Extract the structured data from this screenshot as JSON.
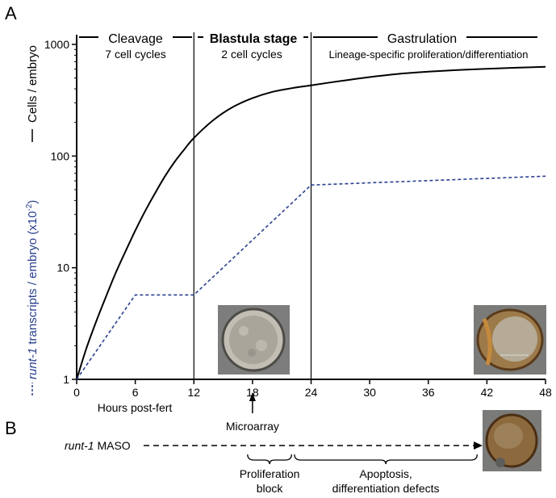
{
  "panel_a_label": "A",
  "panel_b_label": "B",
  "colors": {
    "cells_line": "#000000",
    "runt_line": "#2a3f8f",
    "axis": "#000000",
    "photo_bg": "#7d7d7d",
    "photo_embryo_a": "#b7b3a8",
    "photo_embryo_b": "#9a7a4a",
    "photo_embryo_c": "#8a6a3f"
  },
  "chart_data": {
    "type": "line",
    "log_y": true,
    "xlim": [
      0,
      48
    ],
    "ylim": [
      1,
      1000
    ],
    "x_ticks": [
      "0",
      "6",
      "12",
      "18",
      "24",
      "30",
      "36",
      "42",
      "48"
    ],
    "y_ticks": [
      "1",
      "10",
      "100",
      "1000"
    ],
    "xlabel": "Hours post-fert",
    "ylabel_cells": "Cells / embryo",
    "ylabel_runt_italic": "runt-1",
    "ylabel_runt_rest": " transcripts / embryo (x10",
    "ylabel_runt_exp": "-2",
    "ylabel_runt_close": ")",
    "grid": false,
    "stage_dividers_x": [
      12,
      24
    ],
    "stages": [
      {
        "name": "Cleavage",
        "detail": "7 cell cycles",
        "bold": false
      },
      {
        "name": "Blastula stage",
        "detail": "2 cell cycles",
        "bold": true
      },
      {
        "name": "Gastrulation",
        "detail": "Lineage-specific proliferation/differentiation",
        "bold": false
      }
    ],
    "series": [
      {
        "style": "solid",
        "x": [
          0,
          1,
          2,
          3,
          4,
          5,
          6,
          7,
          8,
          9,
          10,
          11,
          12,
          14,
          16,
          18,
          20,
          22,
          24,
          27,
          30,
          33,
          36,
          39,
          42,
          45,
          48
        ],
        "y": [
          1,
          1.9,
          3.3,
          5.5,
          9,
          14,
          21.5,
          32,
          46,
          65,
          88,
          114,
          145,
          210,
          275,
          330,
          375,
          405,
          430,
          470,
          510,
          545,
          570,
          590,
          605,
          618,
          630
        ]
      },
      {
        "style": "dashed",
        "x": [
          0,
          6,
          12,
          24,
          48
        ],
        "y": [
          1,
          5.7,
          5.7,
          55,
          66
        ]
      }
    ],
    "annotations": {
      "microarray_x": 18,
      "microarray_label": "Microarray"
    }
  },
  "panel_b": {
    "maso_italic": "runt-1",
    "maso_rest": " MASO",
    "bracket_1": {
      "from": 17.5,
      "to": 22.0,
      "line1": "Proliferation",
      "line2": "block"
    },
    "bracket_2": {
      "from": 22.3,
      "to": 41.0,
      "line1": "Apoptosis,",
      "line2": "differentiation defects"
    }
  }
}
